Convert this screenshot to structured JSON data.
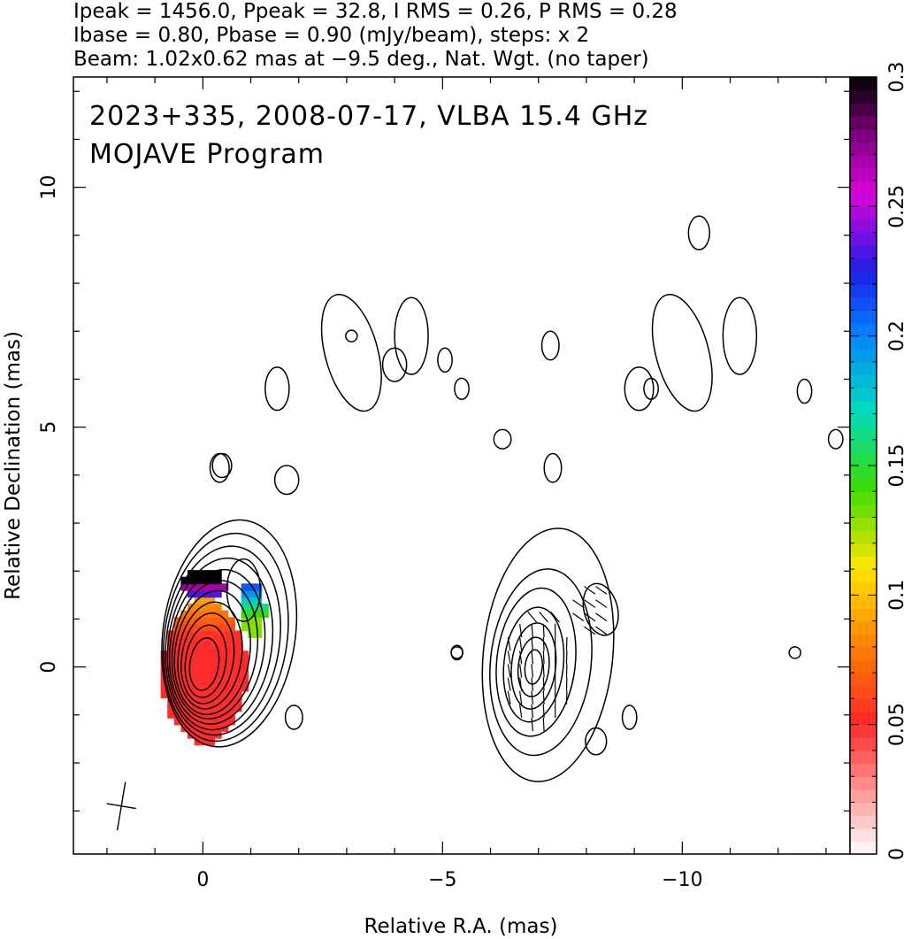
{
  "header": {
    "line1": "Ipeak = 1456.0, Ppeak = 32.8, I RMS = 0.26, P RMS = 0.28",
    "line2": "Ibase = 0.80, Pbase = 0.90 (mJy/beam), steps: x 2",
    "line3": "Beam: 1.02x0.62 mas at −9.5 deg., Nat. Wgt. (no taper)"
  },
  "annotation": {
    "line1": "2023+335, 2008-07-17, VLBA 15.4 GHz",
    "line2": "MOJAVE Program"
  },
  "chart_data": {
    "type": "heatmap",
    "title": "2023+335, 2008-07-17, VLBA 15.4 GHz",
    "subtitle": "MOJAVE Program",
    "xlabel": "Relative R.A. (mas)",
    "ylabel": "Relative Declination (mas)",
    "xlim": [
      2.7,
      -13.5
    ],
    "ylim": [
      -3.9,
      12.3
    ],
    "x_ticks": [
      0,
      -5,
      -10
    ],
    "x_tick_labels": [
      "0",
      "−5",
      "−10"
    ],
    "y_ticks": [
      0,
      5,
      10
    ],
    "y_tick_labels": [
      "0",
      "5",
      "10"
    ],
    "colorbar": {
      "min": 0,
      "max": 0.3,
      "ticks": [
        0,
        0.05,
        0.1,
        0.15,
        0.2,
        0.25,
        0.3
      ],
      "tick_labels": [
        "0",
        "0.05",
        "0.1",
        "0.15",
        "0.2",
        "0.25",
        "0.3"
      ]
    },
    "beam": {
      "major_mas": 1.02,
      "minor_mas": 0.62,
      "pa_deg": -9.5,
      "center": [
        1.7,
        -2.9
      ]
    },
    "panels": [
      {
        "name": "total-intensity-with-fractional-polarization",
        "center": [
          0.0,
          0.0
        ]
      },
      {
        "name": "polarized-intensity-with-evpa",
        "center": [
          -6.9,
          0.0
        ]
      }
    ],
    "ipeak_mJy_per_beam": 1456.0,
    "ppeak_mJy_per_beam": 32.8,
    "i_rms": 0.26,
    "p_rms": 0.28,
    "ibase": 0.8,
    "pbase": 0.9,
    "contour_step_factor": 2
  }
}
